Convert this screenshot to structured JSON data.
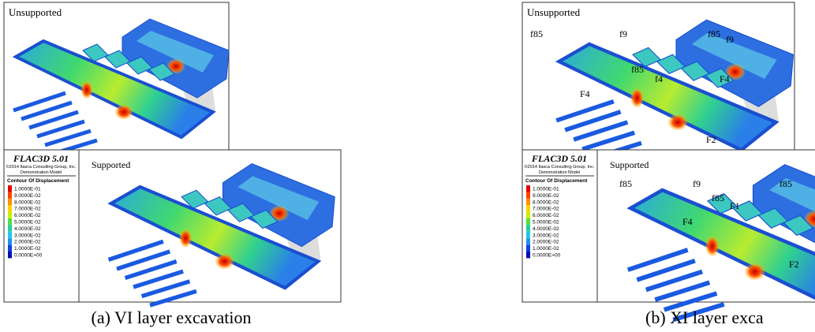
{
  "panels": [
    {
      "caption": "(a) VI layer excavation",
      "unsupported": {
        "label": "Unsupported",
        "faults": []
      },
      "supported": {
        "label": "Supported",
        "faults": []
      },
      "legend": {
        "software": "FLAC3D 5.01",
        "copyright": "©2014 Itasca Consulting Group, Inc.",
        "model": "Demonstration Model",
        "title": "Contour Of Displacement",
        "levels": [
          {
            "label": "1.0000E-01",
            "color": "#e00000"
          },
          {
            "label": "9.0000E-02",
            "color": "#ff4000"
          },
          {
            "label": "8.0000E-02",
            "color": "#ff9000"
          },
          {
            "label": "7.0000E-02",
            "color": "#ffd000"
          },
          {
            "label": "6.0000E-02",
            "color": "#c8f000"
          },
          {
            "label": "5.0000E-02",
            "color": "#50e040"
          },
          {
            "label": "4.0000E-02",
            "color": "#20d0a0"
          },
          {
            "label": "3.0000E-02",
            "color": "#20c8e8"
          },
          {
            "label": "2.0000E-02",
            "color": "#2090f0"
          },
          {
            "label": "1.0000E-02",
            "color": "#1040e0"
          },
          {
            "label": "0.0000E+00",
            "color": "#0010b0"
          }
        ]
      }
    },
    {
      "caption": "(b) XI layer exca",
      "unsupported": {
        "label": "Unsupported",
        "faults": [
          "f85",
          "f9",
          "f85",
          "f9",
          "f85",
          "f4",
          "F4",
          "F4",
          "F2"
        ]
      },
      "supported": {
        "label": "Supported",
        "faults": [
          "f85",
          "f9",
          "f85",
          "f85",
          "F1",
          "F4",
          "F2"
        ]
      },
      "legend": {
        "software": "FLAC3D 5.01",
        "copyright": "©2014 Itasca Consulting Group, Inc.",
        "model": "Demonstration Model",
        "title": "Contour Of Displacement",
        "levels": [
          {
            "label": "1.0000E-01",
            "color": "#e00000"
          },
          {
            "label": "9.0000E-02",
            "color": "#ff4000"
          },
          {
            "label": "8.0000E-02",
            "color": "#ff9000"
          },
          {
            "label": "7.0000E-02",
            "color": "#ffd000"
          },
          {
            "label": "6.0000E-02",
            "color": "#c8f000"
          },
          {
            "label": "5.0000E-02",
            "color": "#50e040"
          },
          {
            "label": "4.0000E-02",
            "color": "#20d0a0"
          },
          {
            "label": "3.0000E-02",
            "color": "#20c8e8"
          },
          {
            "label": "2.0000E-02",
            "color": "#2090f0"
          },
          {
            "label": "1.0000E-02",
            "color": "#1040e0"
          },
          {
            "label": "0.0000E+00",
            "color": "#0010b0"
          }
        ]
      }
    }
  ]
}
